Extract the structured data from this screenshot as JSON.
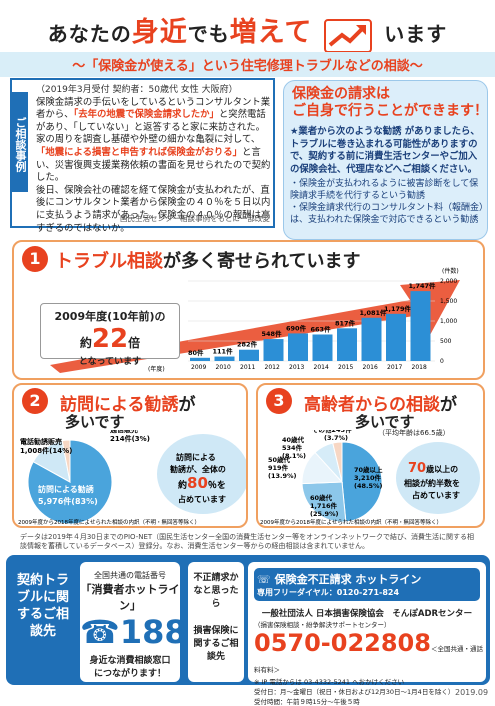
{
  "header": {
    "pre": "あなたの",
    "w1": "身近",
    "mid": "でも",
    "w2": "増えて",
    "post": "います"
  },
  "subtitle": "〜「保険金が使える」という住宅修理トラブルなどの相談〜",
  "case": {
    "tab": "ご相談事例",
    "head": "（2019年3月受付 契約者：50歳代 女性 大阪府）",
    "p1": "保険金請求の手伝いをしているというコンサルタント業者から、",
    "p1red": "「去年の地震で保険金請求したか」",
    "p1b": "と突然電話があり、「していない」と返答すると家に来訪された。",
    "p2": "家の周りを調査し基礎や外壁の細かな亀裂に対して、",
    "p2red": "「地震による損害と申告すれば保険金がおりる」",
    "p2b": "と言い、災害復興支援業務依頼の書面を見せられたので契約した。",
    "p3": "後日、保険会社の確認を経て保険金が支払われたが、直後にコンサルタント業者から保険金の４０％を５日以内に支払うよう請求があった。保険金の４０％の報酬は高すぎるのではないか。",
    "src": "国民生活センター相談事例をもとに一部改変"
  },
  "speech": {
    "t1": "保険金の請求は",
    "t2": "ご自身で行うことができます！",
    "body": "★業者から次のような勧誘 がありましたら、トラブルに巻き込まれる可能性がありますので、契約する前に消費生活センターやご加入の保険会社、代理店などへご相談ください。",
    "l1": "・保険金が支払われるように被害診断をして保険請求手続を代行するという勧誘",
    "l2": "・保険金請求代行のコンサルタント料（報酬金）は、支払われた保険金で対応できるという勧誘"
  },
  "sec1": {
    "num": "1",
    "t1": "トラブル相談",
    "t2": "が多く寄せられています",
    "ib1": "2009年度(10年前)の",
    "ib2a": "約",
    "ib2b": "22",
    "ib2c": "倍",
    "ib3": "となっています",
    "unit": "(件数)",
    "yearlabel": "(年度)"
  },
  "chart_data": [
    {
      "type": "bar",
      "categories": [
        "2009",
        "2010",
        "2011",
        "2012",
        "2013",
        "2014",
        "2015",
        "2016",
        "2017",
        "2018"
      ],
      "values": [
        80,
        111,
        282,
        548,
        690,
        663,
        817,
        1081,
        1179,
        1747
      ],
      "value_labels": [
        "80件",
        "111件",
        "282件",
        "548件",
        "690件",
        "663件",
        "817件",
        "1,081件",
        "1,179件",
        "1,747件"
      ],
      "yticks": [
        0,
        500,
        1000,
        1500,
        2000
      ],
      "ylim": [
        0,
        2000
      ]
    },
    {
      "type": "pie",
      "slices": [
        {
          "name": "訪問による勧誘",
          "value": 5976,
          "pct": 83
        },
        {
          "name": "電話勧誘販売",
          "value": 1008,
          "pct": 14
        },
        {
          "name": "通信販売",
          "value": 214,
          "pct": 3
        }
      ]
    },
    {
      "type": "pie",
      "slices": [
        {
          "name": "70歳以上",
          "value": 3210,
          "pct": 48.5
        },
        {
          "name": "60歳代",
          "value": 1716,
          "pct": 25.9
        },
        {
          "name": "50歳代",
          "value": 919,
          "pct": 13.9
        },
        {
          "name": "40歳代",
          "value": 534,
          "pct": 8.1
        },
        {
          "name": "その他",
          "value": 245,
          "pct": 3.7
        }
      ]
    }
  ],
  "sec2": {
    "num": "2",
    "t1": "訪問による勧誘",
    "t2": "が",
    "t3": "多いです",
    "lab_tel": "電話勧誘販売",
    "lab_tel_v": "1,008件(14%)",
    "lab_mail": "通信販売",
    "lab_mail_v": "214件(3%)",
    "lab_visit": "訪問による勧誘",
    "lab_visit_v": "5,976件(83%)",
    "bubble1": "訪問による",
    "bubble2": "勧誘が、全体の",
    "bubble3a": "約",
    "bubble3b": "80",
    "bubble3c": "％を",
    "bubble4": "占めています",
    "foot": "2009年度から2018年度によせられた相談の内訳（不明・無回答等除く）"
  },
  "sec3": {
    "num": "3",
    "t1": "高齢者からの相談",
    "t2": "が",
    "t3": "多いです",
    "avg": "（平均年齢は66.5歳）",
    "lab_other": "その他245件",
    "lab_other_p": "(3.7%)",
    "lab_40": "40歳代",
    "lab_40v": "534件",
    "lab_40p": "(8.1%)",
    "lab_50": "50歳代",
    "lab_50v": "919件",
    "lab_50p": "(13.9%)",
    "lab_60": "60歳代",
    "lab_60v": "1,716件",
    "lab_60p": "(25.9%)",
    "lab_70": "70歳以上",
    "lab_70v": "3,210件",
    "lab_70p": "(48.5%)",
    "b1": "70",
    "b1b": "歳以上の",
    "b2": "相談が約半数を",
    "b3": "占めています",
    "foot": "2009年度から2018年度によせられた相談の内訳（不明・無回答等除く）"
  },
  "note": "データは2019年４月30日までのPIO-NET（国民生活センター全国の消費生活センター等をオンラインネットワークで結び、消費生活に関する相談情報を蓄積しているデータベース）登録分。なお、消費生活センター等からの経由相談は含まれていません。",
  "footer": {
    "contact": "契約トラブルに関するご相談先",
    "h1a": "全国共通の電話番号",
    "h1b": "「消費者ホットライン」",
    "h1num": "188",
    "h1c": "身近な消費相談窓口につながります！",
    "h2a": "不正請求かなと思ったら",
    "h2b": "損害保険に関するご相談先",
    "hl_title": "保険金不正請求 ホットライン",
    "hl_free": "専用フリーダイヤル：0120-271-824",
    "org": "一般社団法人 日本損害保険協会　そんぽADRセンター",
    "org_sub": "（損害保険相談・紛争解決サポートセンター）",
    "navi": "0570-022808",
    "navi_note": "＜全国共通・通話料有料＞",
    "ip": "※ IP 電話からは 03-4332-5241 へおかけください",
    "hours1": "受付日：月〜金曜日（祝日・休日および12月30日〜1月4日を除く）",
    "hours2": "受付時間：午前９時15分〜午後５時"
  },
  "version": "2019.09"
}
